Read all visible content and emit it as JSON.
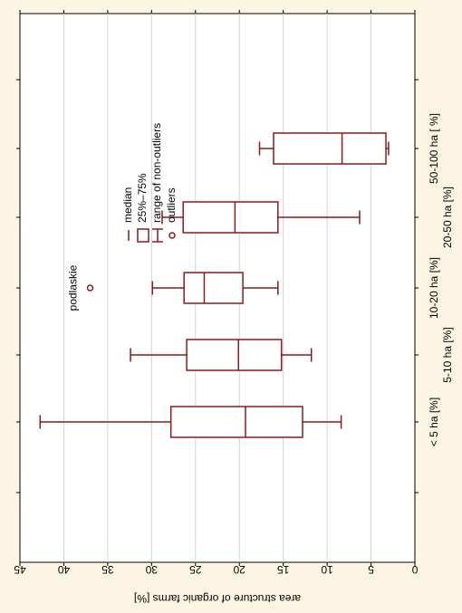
{
  "chart_data": {
    "type": "boxplot",
    "orientation": "rotated-90",
    "ylabel": "area structure of organic farms [%]",
    "ylim": [
      0,
      45
    ],
    "yticks": [
      0,
      5,
      10,
      15,
      20,
      25,
      30,
      35,
      40,
      45
    ],
    "grid": true,
    "categories": [
      "< 5  ha  [%]",
      "5-10 ha [%]",
      "10-20 ha [%]",
      "20-50 ha [%]",
      "50-100 ha [ %]"
    ],
    "boxes": [
      {
        "category": "< 5  ha  [%]",
        "whisker_low": 8.4,
        "q1": 12.8,
        "median": 19.3,
        "q3": 27.8,
        "whisker_high": 42.7
      },
      {
        "category": "5-10 ha [%]",
        "whisker_low": 11.8,
        "q1": 15.2,
        "median": 20.1,
        "q3": 26.0,
        "whisker_high": 32.4
      },
      {
        "category": "10-20 ha [%]",
        "whisker_low": 15.6,
        "q1": 19.6,
        "median": 24.0,
        "q3": 26.3,
        "whisker_high": 29.9
      },
      {
        "category": "20-50 ha [%]",
        "whisker_low": 6.3,
        "q1": 15.6,
        "median": 20.5,
        "q3": 26.4,
        "whisker_high": 28.8
      },
      {
        "category": "50-100 ha [ %]",
        "whisker_low": 3.0,
        "q1": 3.3,
        "median": 8.3,
        "q3": 16.1,
        "whisker_high": 17.7
      }
    ],
    "outliers": [
      {
        "category": "10-20 ha [%]",
        "value": 37.0,
        "label": "podlaskie"
      }
    ],
    "legend": {
      "placement": "top-center",
      "entries": [
        {
          "symbol": "median-line",
          "label": "median"
        },
        {
          "symbol": "box",
          "label": "25%–75%"
        },
        {
          "symbol": "whisker",
          "label": "range of non-outliers"
        },
        {
          "symbol": "circle",
          "label": "outliers"
        }
      ]
    },
    "colors": {
      "boxes": "#8b1a1a",
      "grid": "#d4d4d4",
      "background": "#fdf5e3",
      "plot_area": "#ffffff"
    }
  }
}
